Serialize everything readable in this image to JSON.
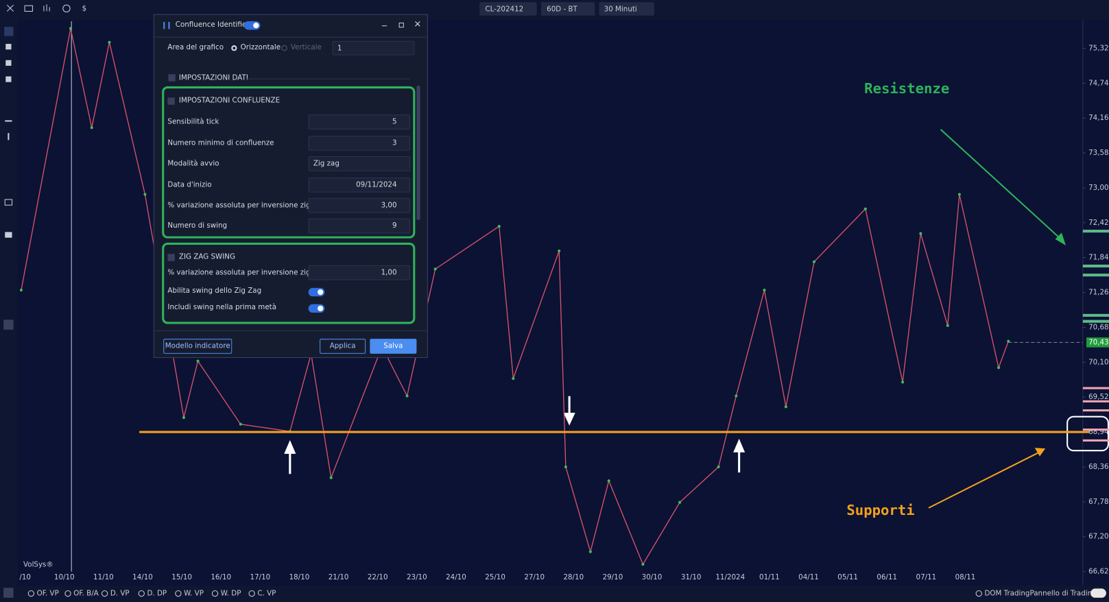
{
  "toolbar": {
    "contract": "CL-202412",
    "range": "60D - BT",
    "timeframe": "30 Minuti"
  },
  "chart_data": {
    "type": "line",
    "categories": [
      "/10",
      "10/10",
      "11/10",
      "14/10",
      "15/10",
      "16/10",
      "17/10",
      "18/10",
      "21/10",
      "22/10",
      "23/10",
      "24/10",
      "25/10",
      "27/10",
      "28/10",
      "29/10",
      "30/10",
      "31/10",
      "11/2024",
      "01/11",
      "04/11",
      "05/11",
      "06/11",
      "07/11",
      "08/11"
    ],
    "x": [
      -0.1,
      1.16,
      1.7,
      2.15,
      3.06,
      4.05,
      4.41,
      5.5,
      6.76,
      7.3,
      7.81,
      9.11,
      9.75,
      10.47,
      12.1,
      12.46,
      13.63,
      13.8,
      14.43,
      14.9,
      15.77,
      16.71,
      17.7,
      18.15,
      18.87,
      19.42,
      20.14,
      21.45,
      22.4,
      22.86,
      23.55,
      23.85,
      24.85,
      25.1
    ],
    "values": [
      71.3,
      75.65,
      74.0,
      75.42,
      72.89,
      69.18,
      70.12,
      69.07,
      68.95,
      70.24,
      68.18,
      70.36,
      69.54,
      71.65,
      72.36,
      69.83,
      71.95,
      68.36,
      66.95,
      68.13,
      66.74,
      67.77,
      68.36,
      69.54,
      71.3,
      69.36,
      71.77,
      72.65,
      69.77,
      72.24,
      70.71,
      72.89,
      70.01,
      70.45
    ],
    "color": "#d9536b",
    "xlim": [
      -0.1,
      27
    ],
    "ylim": [
      66.62,
      75.77
    ],
    "yticks": [
      {
        "value": 66.62,
        "label": "66,62"
      },
      {
        "value": 67.2,
        "label": "67,20"
      },
      {
        "value": 67.78,
        "label": "67,78"
      },
      {
        "value": 68.36,
        "label": "68,36"
      },
      {
        "value": 68.94,
        "label": "68,94"
      },
      {
        "value": 69.52,
        "label": "69,52"
      },
      {
        "value": 70.1,
        "label": "70,10"
      },
      {
        "value": 70.68,
        "label": "70,68"
      },
      {
        "value": 71.26,
        "label": "71,26"
      },
      {
        "value": 71.84,
        "label": "71,84"
      },
      {
        "value": 72.42,
        "label": "72,42"
      },
      {
        "value": 73.0,
        "label": "73,00"
      },
      {
        "value": 73.58,
        "label": "73,58"
      },
      {
        "value": 74.16,
        "label": "74,16"
      },
      {
        "value": 74.74,
        "label": "74,74"
      },
      {
        "value": 75.32,
        "label": "75,32"
      }
    ],
    "last_price": {
      "value": 70.43,
      "label": "70,43"
    },
    "support_line": 68.94,
    "resistance_levels": [
      72.28,
      71.7,
      71.55,
      70.88,
      70.78
    ],
    "support_levels": [
      69.67,
      69.45,
      69.3,
      68.98,
      68.8
    ],
    "annotations": [
      "Resistenze",
      "Supporti"
    ],
    "watermark": "VolSys®"
  },
  "dialog": {
    "title": "Confluence Identifier",
    "area_label": "Area del grafico",
    "orientation": [
      "Orizzontale",
      "Verticale"
    ],
    "area_value": "1",
    "section": "IMPOSTAZIONI DATI",
    "groups": [
      {
        "title": "IMPOSTAZIONI CONFLUENZE",
        "fields": [
          {
            "label": "Sensibilità tick",
            "value": "5"
          },
          {
            "label": "Numero minimo di confluenze",
            "value": "3"
          },
          {
            "label": "Modalità avvio",
            "value": "Zig zag"
          },
          {
            "label": "Data d'inizio",
            "value": "09/11/2024"
          },
          {
            "label": "% variazione assoluta per inversione zig zag",
            "value": "3,00"
          },
          {
            "label": "Numero di swing",
            "value": "9"
          }
        ]
      },
      {
        "title": "ZIG ZAG SWING",
        "fields": [
          {
            "label": "% variazione assoluta per inversione zig zag",
            "value": "1,00"
          },
          {
            "label": "Abilita swing dello Zig Zag"
          },
          {
            "label": "Includi swing nella prima metà"
          }
        ]
      }
    ],
    "buttons": {
      "template": "Modello indicatore",
      "apply": "Applica",
      "save": "Salva"
    }
  },
  "bottom_bar": {
    "studies": [
      "OF. VP",
      "OF. B/A",
      "D. VP",
      "D. DP",
      "W. VP",
      "W. DP",
      "C. VP"
    ],
    "dom": "DOM Trading",
    "panel": "Pannello di Trading"
  }
}
